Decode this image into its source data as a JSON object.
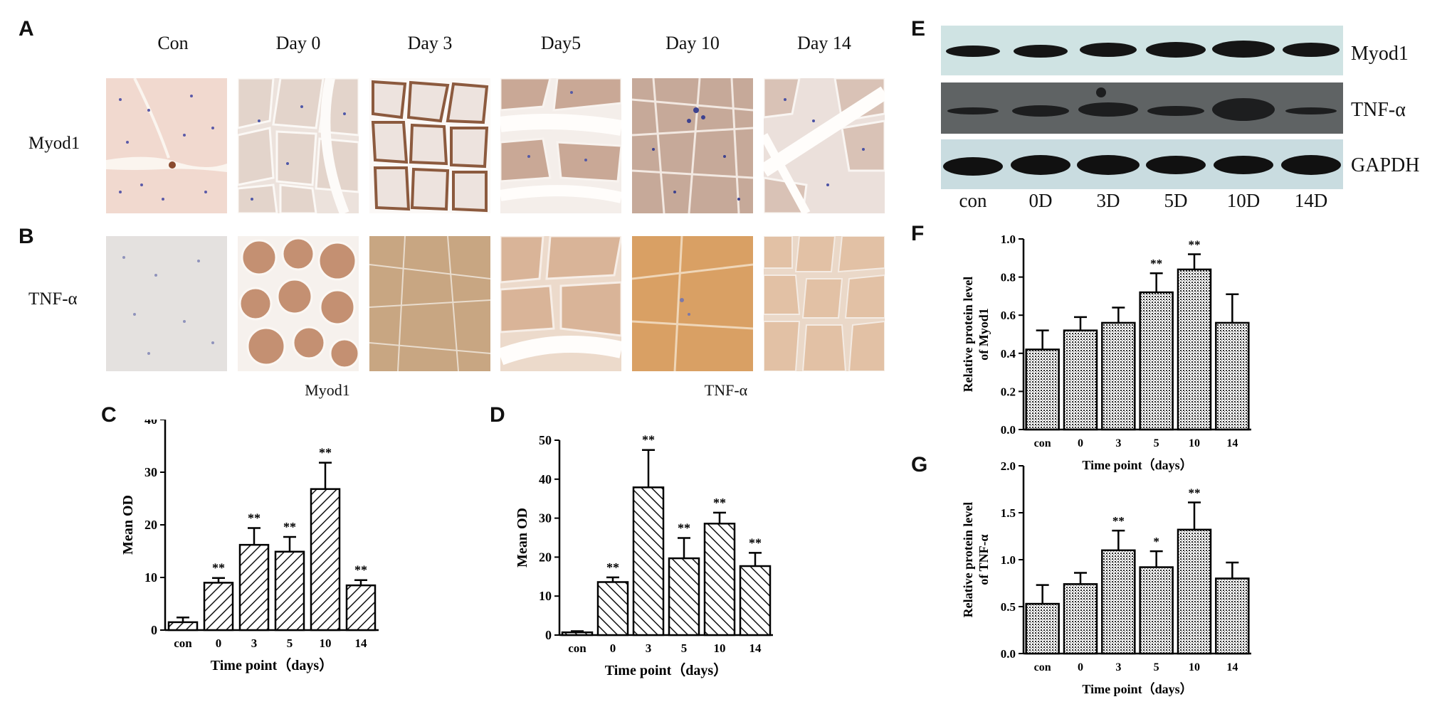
{
  "panels": {
    "A": "A",
    "B": "B",
    "C": "C",
    "D": "D",
    "E": "E",
    "F": "F",
    "G": "G"
  },
  "histology": {
    "columns": [
      "Con",
      "Day 0",
      "Day 3",
      "Day5",
      "Day 10",
      "Day 14"
    ],
    "rows": [
      "Myod1",
      "TNF-α"
    ]
  },
  "subtitles": {
    "c": "Myod1",
    "d": "TNF-α"
  },
  "blot": {
    "bands": [
      "Myod1",
      "TNF-α",
      "GAPDH"
    ],
    "lanes": [
      "con",
      "0D",
      "3D",
      "5D",
      "10D",
      "14D"
    ],
    "colors": {
      "myod_bg": "#cfe3e3",
      "tnf_bg": "#5f6364",
      "gapdh_bg": "#c9dce0",
      "band": "#111111"
    }
  },
  "chart_data": [
    {
      "panel": "C",
      "type": "bar",
      "categories": [
        "con",
        "0",
        "3",
        "5",
        "10",
        "14"
      ],
      "values": [
        1.5,
        9,
        16.2,
        14.9,
        26.8,
        8.5
      ],
      "errors": [
        0.9,
        0.9,
        3.2,
        2.8,
        5.0,
        1.0
      ],
      "significance": [
        "",
        "**",
        "**",
        "**",
        "**",
        "**"
      ],
      "xlabel": "Time point（days）",
      "ylabel": "Mean OD",
      "ylim": [
        0,
        40
      ],
      "yticks": [
        "0",
        "10",
        "20",
        "30",
        "40"
      ],
      "pattern": "hatch-forward"
    },
    {
      "panel": "D",
      "type": "bar",
      "categories": [
        "con",
        "0",
        "3",
        "5",
        "10",
        "14"
      ],
      "values": [
        0.7,
        13.6,
        37.9,
        19.7,
        28.6,
        17.7
      ],
      "errors": [
        0.3,
        1.2,
        9.6,
        5.2,
        2.8,
        3.4
      ],
      "significance": [
        "",
        "**",
        "**",
        "**",
        "**",
        "**"
      ],
      "xlabel": "Time point（days）",
      "ylabel": "Mean OD",
      "ylim": [
        0,
        50
      ],
      "yticks": [
        "0",
        "10",
        "20",
        "30",
        "40",
        "50"
      ],
      "pattern": "hatch-back"
    },
    {
      "panel": "F",
      "type": "bar",
      "categories": [
        "con",
        "0",
        "3",
        "5",
        "10",
        "14"
      ],
      "values": [
        0.42,
        0.52,
        0.56,
        0.72,
        0.84,
        0.56
      ],
      "errors": [
        0.1,
        0.07,
        0.08,
        0.1,
        0.08,
        0.15
      ],
      "significance": [
        "",
        "",
        "",
        "**",
        "**",
        ""
      ],
      "xlabel": "Time point（days）",
      "ylabel": "Relative protein level of Myod1",
      "ylim": [
        0,
        1.0
      ],
      "yticks": [
        "0.0",
        "0.2",
        "0.4",
        "0.6",
        "0.8",
        "1.0"
      ],
      "pattern": "dots"
    },
    {
      "panel": "G",
      "type": "bar",
      "categories": [
        "con",
        "0",
        "3",
        "5",
        "10",
        "14"
      ],
      "values": [
        0.53,
        0.74,
        1.1,
        0.92,
        1.32,
        0.8
      ],
      "errors": [
        0.2,
        0.12,
        0.21,
        0.17,
        0.29,
        0.17
      ],
      "significance": [
        "",
        "",
        "**",
        "*",
        "**",
        ""
      ],
      "xlabel": "Time point（days）",
      "ylabel": "Relative protein level of TNF-α",
      "ylim": [
        0,
        2.0
      ],
      "yticks": [
        "0.0",
        "0.5",
        "1.0",
        "1.5",
        "2.0"
      ],
      "pattern": "dots"
    }
  ]
}
